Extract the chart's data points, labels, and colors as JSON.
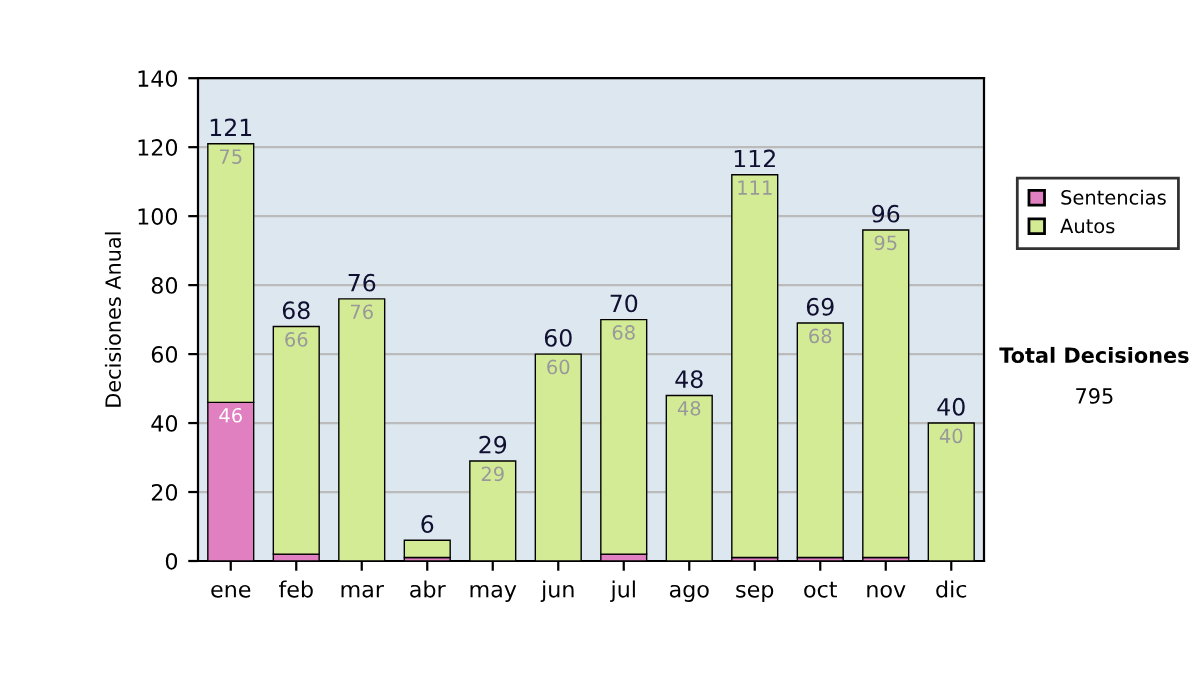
{
  "chart_data": {
    "type": "bar",
    "stacked": true,
    "ylabel": "Decisiones Anual",
    "categories": [
      "ene",
      "feb",
      "mar",
      "abr",
      "may",
      "jun",
      "jul",
      "ago",
      "sep",
      "oct",
      "nov",
      "dic"
    ],
    "series": [
      {
        "name": "Sentencias",
        "color": "#e080c0",
        "values": [
          46,
          2,
          0,
          1,
          0,
          0,
          2,
          0,
          1,
          1,
          1,
          0
        ],
        "value_labels": [
          "46",
          null,
          null,
          null,
          null,
          null,
          null,
          null,
          null,
          null,
          null,
          null
        ]
      },
      {
        "name": "Autos",
        "color": "#d4eb96",
        "values": [
          75,
          66,
          76,
          5,
          29,
          60,
          68,
          48,
          111,
          68,
          95,
          40
        ],
        "value_labels": [
          "75",
          "66",
          "76",
          null,
          "29",
          "60",
          "68",
          "48",
          "111",
          "68",
          "95",
          "40"
        ]
      }
    ],
    "totals": [
      "121",
      "68",
      "76",
      "6",
      "29",
      "60",
      "70",
      "48",
      "112",
      "69",
      "96",
      "40"
    ],
    "ylim": [
      0,
      140
    ],
    "yticks": [
      0,
      20,
      40,
      60,
      80,
      100,
      120,
      140
    ],
    "grid": "y",
    "legend": "right",
    "annotations": [
      "Total Decisiones",
      "795"
    ]
  }
}
